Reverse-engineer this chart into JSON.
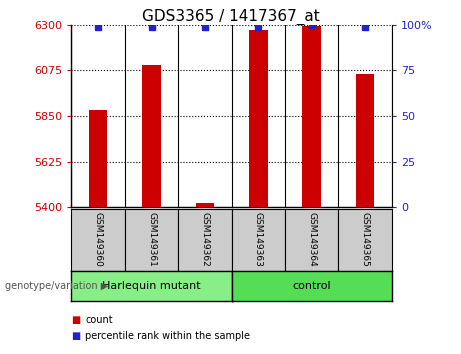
{
  "title": "GDS3365 / 1417367_at",
  "samples": [
    "GSM149360",
    "GSM149361",
    "GSM149362",
    "GSM149363",
    "GSM149364",
    "GSM149365"
  ],
  "count_values": [
    5880,
    6100,
    5422,
    6275,
    6295,
    6058
  ],
  "percentile_values": [
    99,
    99,
    99,
    99,
    100,
    99
  ],
  "ylim_left": [
    5400,
    6300
  ],
  "ylim_right": [
    0,
    100
  ],
  "yticks_left": [
    5400,
    5625,
    5850,
    6075,
    6300
  ],
  "yticks_right": [
    0,
    25,
    50,
    75,
    100
  ],
  "yticklabels_right": [
    "0",
    "25",
    "50",
    "75",
    "100%"
  ],
  "bar_color": "#cc0000",
  "dot_color": "#2222cc",
  "bar_width": 0.35,
  "groups": [
    {
      "label": "Harlequin mutant",
      "indices": [
        0,
        1,
        2
      ],
      "color": "#88ee88"
    },
    {
      "label": "control",
      "indices": [
        3,
        4,
        5
      ],
      "color": "#55dd55"
    }
  ],
  "group_label": "genotype/variation",
  "legend_count": "count",
  "legend_percentile": "percentile rank within the sample",
  "tick_color_left": "#cc0000",
  "tick_color_right": "#2222cc",
  "grid_linestyle": ":",
  "grid_linewidth": 0.8,
  "xticklabel_box_color": "#cccccc",
  "tick_fontsize": 8,
  "label_fontsize": 7.5,
  "title_fontsize": 11
}
